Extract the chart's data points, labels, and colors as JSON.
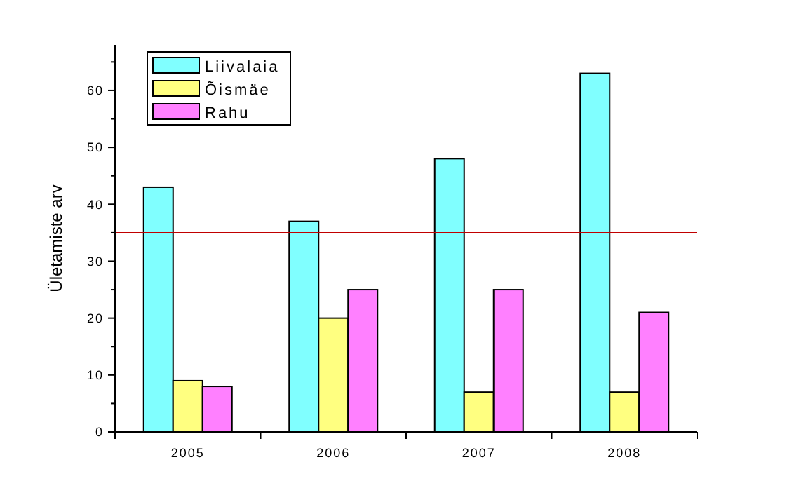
{
  "chart_data": {
    "type": "bar",
    "ylabel": "Ületamiste arv",
    "categories": [
      "2005",
      "2006",
      "2007",
      "2008"
    ],
    "series": [
      {
        "name": "Liivalaia",
        "color": "#80ffff",
        "values": [
          43,
          37,
          48,
          63
        ]
      },
      {
        "name": "Õismäe",
        "color": "#ffff80",
        "values": [
          9,
          20,
          7,
          7
        ]
      },
      {
        "name": "Rahu",
        "color": "#ff80ff",
        "values": [
          8,
          25,
          25,
          21
        ]
      }
    ],
    "ylim": [
      0,
      68
    ],
    "yticks": [
      0,
      {
        "value": 5,
        "label": null
      },
      10,
      {
        "value": 15,
        "label": null
      },
      20,
      {
        "value": 25,
        "label": null
      },
      30,
      {
        "value": 35,
        "label": null
      },
      40,
      {
        "value": 45,
        "label": null
      },
      50,
      {
        "value": 55,
        "label": null
      },
      60,
      {
        "value": 65,
        "label": null
      }
    ],
    "ref_lines": [
      {
        "axis": "y",
        "value": 35,
        "color": "#c00000"
      }
    ],
    "legend": "top left",
    "grid": false
  }
}
